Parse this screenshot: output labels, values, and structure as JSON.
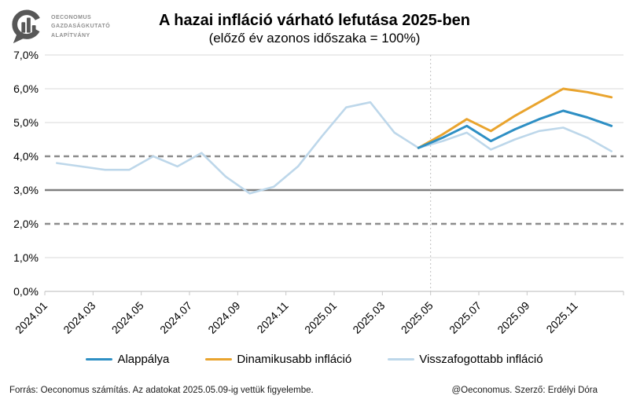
{
  "logo": {
    "line1": "Oeconomus",
    "line2": "Gazdaságkutató",
    "line3": "Alapítvány"
  },
  "header": {
    "title": "A hazai infláció várható lefutása 2025-ben",
    "subtitle": "(előző év azonos időszaka = 100%)"
  },
  "chart_data": {
    "type": "line",
    "x": [
      "2024.01",
      "2024.02",
      "2024.03",
      "2024.04",
      "2024.05",
      "2024.06",
      "2024.07",
      "2024.08",
      "2024.09",
      "2024.10",
      "2024.11",
      "2024.12",
      "2025.01",
      "2025.02",
      "2025.03",
      "2025.04",
      "2025.05",
      "2025.06",
      "2025.07",
      "2025.08",
      "2025.09",
      "2025.10",
      "2025.11",
      "2025.12"
    ],
    "x_tick_every": 2,
    "ylim": [
      0,
      7
    ],
    "grid": true,
    "y_ticks": [
      {
        "value": 0,
        "label": "0,0%"
      },
      {
        "value": 1,
        "label": "1,0%"
      },
      {
        "value": 2,
        "label": "2,0%"
      },
      {
        "value": 3,
        "label": "3,0%"
      },
      {
        "value": 4,
        "label": "4,0%"
      },
      {
        "value": 5,
        "label": "5,0%"
      },
      {
        "value": 6,
        "label": "6,0%"
      },
      {
        "value": 7,
        "label": "7,0%"
      }
    ],
    "reference_lines": [
      {
        "value": 4,
        "style": "dashed",
        "color": "#8c8c8c",
        "meaning": "tolerance band upper"
      },
      {
        "value": 3,
        "style": "solid",
        "color": "#7f7f7f",
        "meaning": "inflation target"
      },
      {
        "value": 2,
        "style": "dashed",
        "color": "#8c8c8c",
        "meaning": "tolerance band lower"
      }
    ],
    "forecast_divider_at": "2025.05",
    "legend_position": "bottom",
    "series": [
      {
        "id": "alappalya",
        "name": "Alappálya",
        "color": "#2e8fc4",
        "width": 3,
        "values": [
          null,
          null,
          null,
          null,
          null,
          null,
          null,
          null,
          null,
          null,
          null,
          null,
          null,
          null,
          null,
          4.25,
          4.55,
          4.9,
          4.45,
          4.8,
          5.1,
          5.35,
          5.15,
          4.9
        ]
      },
      {
        "id": "dinamikusabb-inflacio",
        "name": "Dinamikusabb infláció",
        "color": "#e9a42e",
        "width": 3,
        "values": [
          null,
          null,
          null,
          null,
          null,
          null,
          null,
          null,
          null,
          null,
          null,
          null,
          null,
          null,
          null,
          4.25,
          4.65,
          5.1,
          4.75,
          5.2,
          5.6,
          6.0,
          5.9,
          5.75
        ]
      },
      {
        "id": "visszafogottabb-inflacio",
        "name": "Visszafogottabb infláció",
        "color": "#bdd7ea",
        "width": 2.6,
        "values": [
          3.8,
          3.7,
          3.6,
          3.6,
          4.0,
          3.7,
          4.1,
          3.4,
          2.9,
          3.1,
          3.7,
          4.6,
          5.45,
          5.6,
          4.7,
          4.25,
          4.45,
          4.7,
          4.2,
          4.5,
          4.75,
          4.85,
          4.55,
          4.15
        ]
      }
    ]
  },
  "legend": [
    {
      "label": "Alappálya",
      "color": "#2e8fc4"
    },
    {
      "label": "Dinamikusabb infláció",
      "color": "#e9a42e"
    },
    {
      "label": "Visszafogottabb infláció",
      "color": "#bdd7ea"
    }
  ],
  "footer": {
    "left": "Forrás: Oeconomus számítás. Az adatokat 2025.05.09-ig vettük figyelembe.",
    "right": "@Oeconomus. Szerző: Erdélyi Dóra"
  },
  "colors": {
    "gridline": "#d9d9d9",
    "axis": "#c6c6c6",
    "divider": "#bfbfbf",
    "logo": "#575757"
  }
}
